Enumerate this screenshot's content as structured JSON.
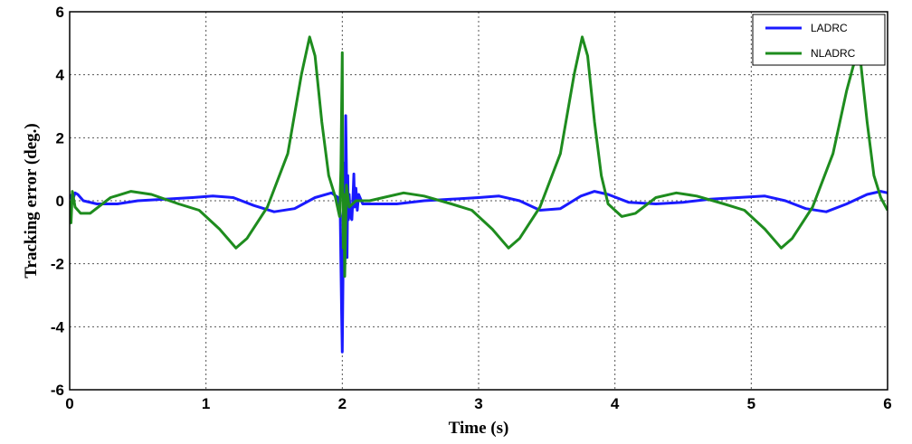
{
  "chart_data": {
    "type": "line",
    "title": "",
    "xlabel": "Time (s)",
    "ylabel": "Tracking error (deg.)",
    "xlim": [
      0,
      6
    ],
    "ylim": [
      -6,
      6
    ],
    "xticks": [
      0,
      1,
      2,
      3,
      4,
      5,
      6
    ],
    "yticks": [
      -6,
      -4,
      -2,
      0,
      2,
      4,
      6
    ],
    "xtick_labels": [
      "0",
      "1",
      "2",
      "3",
      "4",
      "5",
      "6"
    ],
    "ytick_labels": [
      "-6",
      "-4",
      "-2",
      "0",
      "2",
      "4",
      "6"
    ],
    "grid": true,
    "legend_position": "top-right",
    "series": [
      {
        "name": "LADRC",
        "color": "#1a1aff",
        "points": [
          [
            0,
            0.2
          ],
          [
            0.02,
            0.0
          ],
          [
            0.04,
            0.25
          ],
          [
            0.06,
            0.2
          ],
          [
            0.1,
            0.0
          ],
          [
            0.2,
            -0.1
          ],
          [
            0.35,
            -0.1
          ],
          [
            0.5,
            0.0
          ],
          [
            0.7,
            0.05
          ],
          [
            0.9,
            0.1
          ],
          [
            1.05,
            0.15
          ],
          [
            1.2,
            0.1
          ],
          [
            1.35,
            -0.15
          ],
          [
            1.5,
            -0.35
          ],
          [
            1.65,
            -0.25
          ],
          [
            1.8,
            0.1
          ],
          [
            1.92,
            0.25
          ],
          [
            1.97,
            0.1
          ],
          [
            1.985,
            -0.5
          ],
          [
            1.99,
            -2.0
          ],
          [
            1.995,
            -3.6
          ],
          [
            2.0,
            -4.8
          ],
          [
            2.005,
            -2.5
          ],
          [
            2.01,
            0.5
          ],
          [
            2.015,
            1.2
          ],
          [
            2.02,
            -1.5
          ],
          [
            2.025,
            2.7
          ],
          [
            2.03,
            1.0
          ],
          [
            2.035,
            -1.8
          ],
          [
            2.04,
            0.8
          ],
          [
            2.045,
            -0.6
          ],
          [
            2.05,
            0.2
          ],
          [
            2.06,
            -0.5
          ],
          [
            2.07,
            -0.6
          ],
          [
            2.08,
            0.3
          ],
          [
            2.085,
            0.85
          ],
          [
            2.09,
            -0.2
          ],
          [
            2.1,
            0.4
          ],
          [
            2.11,
            -0.3
          ],
          [
            2.12,
            0.2
          ],
          [
            2.15,
            -0.1
          ],
          [
            2.2,
            -0.1
          ],
          [
            2.4,
            -0.1
          ],
          [
            2.6,
            0.0
          ],
          [
            2.8,
            0.05
          ],
          [
            3.0,
            0.1
          ],
          [
            3.15,
            0.15
          ],
          [
            3.3,
            0.0
          ],
          [
            3.45,
            -0.3
          ],
          [
            3.6,
            -0.25
          ],
          [
            3.75,
            0.15
          ],
          [
            3.85,
            0.3
          ],
          [
            3.95,
            0.2
          ],
          [
            4.1,
            -0.05
          ],
          [
            4.3,
            -0.1
          ],
          [
            4.5,
            -0.05
          ],
          [
            4.7,
            0.05
          ],
          [
            4.9,
            0.1
          ],
          [
            5.1,
            0.15
          ],
          [
            5.25,
            0.0
          ],
          [
            5.4,
            -0.25
          ],
          [
            5.55,
            -0.35
          ],
          [
            5.7,
            -0.1
          ],
          [
            5.85,
            0.2
          ],
          [
            5.95,
            0.3
          ],
          [
            6.0,
            0.25
          ]
        ]
      },
      {
        "name": "NLADRC",
        "color": "#1e8c1e",
        "points": [
          [
            0,
            0.0
          ],
          [
            0.01,
            -0.7
          ],
          [
            0.02,
            0.3
          ],
          [
            0.04,
            -0.2
          ],
          [
            0.08,
            -0.4
          ],
          [
            0.15,
            -0.4
          ],
          [
            0.3,
            0.1
          ],
          [
            0.45,
            0.3
          ],
          [
            0.6,
            0.2
          ],
          [
            0.8,
            -0.1
          ],
          [
            0.95,
            -0.3
          ],
          [
            1.1,
            -0.9
          ],
          [
            1.22,
            -1.5
          ],
          [
            1.3,
            -1.2
          ],
          [
            1.45,
            -0.2
          ],
          [
            1.6,
            1.5
          ],
          [
            1.7,
            4.0
          ],
          [
            1.76,
            5.2
          ],
          [
            1.8,
            4.6
          ],
          [
            1.85,
            2.5
          ],
          [
            1.9,
            0.8
          ],
          [
            1.95,
            0.1
          ],
          [
            1.98,
            -0.5
          ],
          [
            1.99,
            1.0
          ],
          [
            1.995,
            3.0
          ],
          [
            2.0,
            4.7
          ],
          [
            2.003,
            0.5
          ],
          [
            2.007,
            -1.5
          ],
          [
            2.012,
            0.2
          ],
          [
            2.018,
            -2.4
          ],
          [
            2.03,
            0.5
          ],
          [
            2.05,
            -0.2
          ],
          [
            2.1,
            0.0
          ],
          [
            2.2,
            0.0
          ],
          [
            2.3,
            0.1
          ],
          [
            2.45,
            0.25
          ],
          [
            2.6,
            0.15
          ],
          [
            2.8,
            -0.1
          ],
          [
            2.95,
            -0.3
          ],
          [
            3.1,
            -0.9
          ],
          [
            3.22,
            -1.5
          ],
          [
            3.3,
            -1.2
          ],
          [
            3.45,
            -0.2
          ],
          [
            3.6,
            1.5
          ],
          [
            3.7,
            4.0
          ],
          [
            3.76,
            5.2
          ],
          [
            3.8,
            4.6
          ],
          [
            3.85,
            2.5
          ],
          [
            3.9,
            0.8
          ],
          [
            3.95,
            -0.1
          ],
          [
            4.05,
            -0.5
          ],
          [
            4.15,
            -0.4
          ],
          [
            4.3,
            0.1
          ],
          [
            4.45,
            0.25
          ],
          [
            4.6,
            0.15
          ],
          [
            4.8,
            -0.1
          ],
          [
            4.95,
            -0.3
          ],
          [
            5.1,
            -0.9
          ],
          [
            5.22,
            -1.5
          ],
          [
            5.3,
            -1.2
          ],
          [
            5.45,
            -0.2
          ],
          [
            5.6,
            1.5
          ],
          [
            5.7,
            3.5
          ],
          [
            5.75,
            4.3
          ],
          [
            5.8,
            4.5
          ],
          [
            5.85,
            2.5
          ],
          [
            5.9,
            0.8
          ],
          [
            5.95,
            0.1
          ],
          [
            6.0,
            -0.3
          ]
        ]
      }
    ]
  }
}
